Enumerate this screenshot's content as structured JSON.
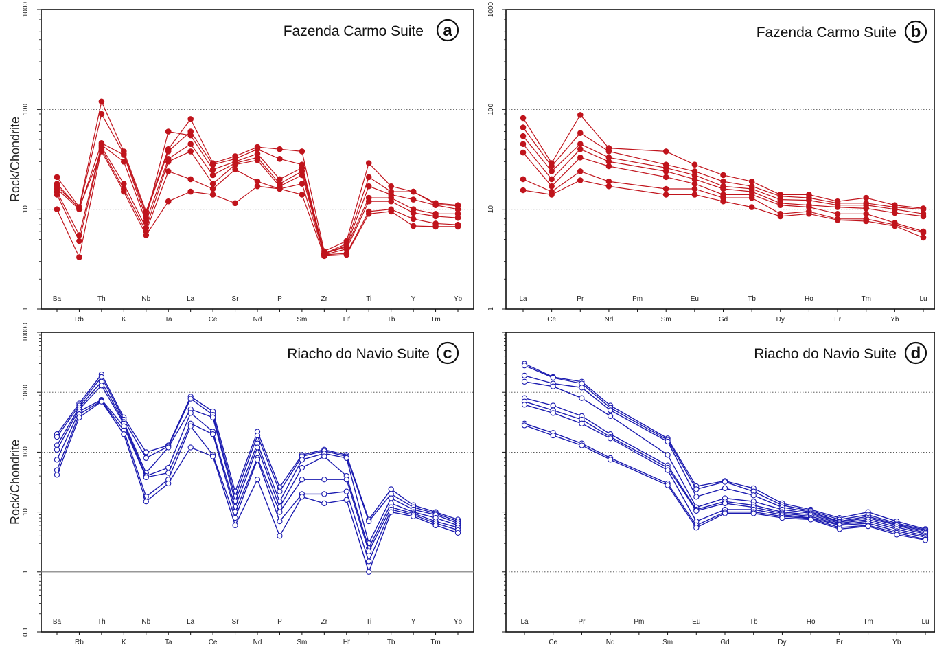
{
  "chart_data": [
    {
      "type": "line",
      "title": "Fazenda Carmo Suite",
      "panel_letter": "a",
      "ylabel": "Rock/Chondrite",
      "yscale": "log",
      "ylim": [
        1,
        1000
      ],
      "ytick_labels": [
        "1",
        "10",
        "100",
        "1000"
      ],
      "color": "#c0141c",
      "marker": "filled-circle",
      "categories": [
        "Ba",
        "Rb",
        "Th",
        "K",
        "Nb",
        "Ta",
        "La",
        "Ce",
        "Sr",
        "Nd",
        "P",
        "Sm",
        "Zr",
        "Hf",
        "Ti",
        "Tb",
        "Y",
        "Tm",
        "Yb"
      ],
      "series": [
        {
          "values": [
            21,
            10.5,
            120,
            38,
            9.5,
            40,
            80,
            29,
            34,
            42,
            40,
            38,
            3.8,
            4.8,
            29,
            17,
            15,
            11.5,
            11
          ]
        },
        {
          "values": [
            18,
            10.2,
            90,
            36,
            9,
            38,
            60,
            28,
            32,
            40,
            32,
            28,
            3.6,
            4.5,
            21,
            15,
            15,
            11.2,
            10.8
          ]
        },
        {
          "values": [
            16,
            10,
            46,
            35,
            8.2,
            60,
            55,
            25,
            30,
            36,
            20,
            26,
            3.6,
            4.3,
            17,
            14,
            12.5,
            11,
            10
          ]
        },
        {
          "values": [
            15,
            5.5,
            44,
            30,
            7.5,
            32,
            45,
            22,
            29,
            33,
            18,
            24,
            3.6,
            4.2,
            13,
            13,
            10,
            9,
            9
          ]
        },
        {
          "values": [
            14,
            4.8,
            42,
            18,
            6.5,
            30,
            38,
            18,
            28,
            31,
            17,
            22,
            3.5,
            4,
            12,
            12,
            9.2,
            8.5,
            8.2
          ]
        },
        {
          "values": [
            10,
            3.3,
            40,
            16,
            6,
            24,
            20,
            16,
            25,
            19,
            16,
            18,
            3.5,
            3.6,
            9.5,
            10,
            8,
            7.2,
            7
          ]
        },
        {
          "values": [
            17,
            10.3,
            38,
            15,
            5.5,
            12,
            15,
            14,
            11.5,
            17,
            16,
            14,
            3.4,
            3.5,
            9,
            9.5,
            6.8,
            6.7,
            6.7
          ]
        }
      ]
    },
    {
      "type": "line",
      "title": "Fazenda Carmo Suite",
      "panel_letter": "b",
      "yscale": "log",
      "ylim": [
        1,
        1000
      ],
      "ytick_labels": [
        "1",
        "10",
        "100",
        "1000"
      ],
      "color": "#c0141c",
      "marker": "filled-circle",
      "categories": [
        "La",
        "Ce",
        "Pr",
        "Nd",
        "Pm",
        "Sm",
        "Eu",
        "Gd",
        "Tb",
        "Dy",
        "Ho",
        "Er",
        "Tm",
        "Yb",
        "Lu"
      ],
      "missing": [
        "Pm"
      ],
      "series": [
        {
          "values": [
            82,
            29,
            88,
            41,
            null,
            38,
            28,
            22,
            19,
            14,
            14,
            12,
            13,
            11,
            10.2
          ]
        },
        {
          "values": [
            66,
            27,
            58,
            38,
            null,
            28,
            24,
            19,
            17,
            13.5,
            13,
            11.5,
            11.5,
            10.5,
            10
          ]
        },
        {
          "values": [
            54,
            24,
            45,
            33,
            null,
            26,
            22,
            17,
            16,
            12.5,
            12.3,
            11,
            11,
            10,
            9
          ]
        },
        {
          "values": [
            45,
            20,
            40,
            30,
            null,
            24,
            20,
            16,
            15,
            11.5,
            11,
            10.5,
            10.2,
            9.2,
            8.5
          ]
        },
        {
          "values": [
            37,
            17,
            33,
            27,
            null,
            21,
            18,
            14,
            14,
            11,
            10.5,
            9,
            9,
            7.3,
            6
          ]
        },
        {
          "values": [
            20,
            15,
            24,
            19,
            null,
            16,
            16,
            13,
            13,
            9,
            9.5,
            8,
            8,
            7,
            5.8
          ]
        },
        {
          "values": [
            15.5,
            14,
            19.5,
            17,
            null,
            14,
            14,
            12,
            10.5,
            8.5,
            9,
            7.8,
            7.6,
            6.8,
            5.2
          ]
        }
      ]
    },
    {
      "type": "line",
      "title": "Riacho do Navio Suite",
      "panel_letter": "c",
      "ylabel": "Rock/Chondrite",
      "yscale": "log",
      "ylim": [
        0.1,
        10000
      ],
      "ytick_labels": [
        "0.1",
        "1",
        "10",
        "100",
        "1000",
        "10000"
      ],
      "color": "#1c1cb0",
      "marker": "open-circle",
      "categories": [
        "Ba",
        "Rb",
        "Th",
        "K",
        "Nb",
        "Ta",
        "La",
        "Ce",
        "Sr",
        "Nd",
        "P",
        "Sm",
        "Zr",
        "Hf",
        "Ti",
        "Tb",
        "Y",
        "Tm",
        "Yb"
      ],
      "series": [
        {
          "values": [
            200,
            650,
            2000,
            380,
            100,
            130,
            850,
            480,
            22,
            220,
            26,
            90,
            110,
            90,
            7.5,
            24,
            13,
            10,
            7.5
          ]
        },
        {
          "values": [
            180,
            600,
            1800,
            350,
            80,
            125,
            780,
            420,
            18,
            190,
            22,
            85,
            105,
            85,
            7,
            20,
            12,
            9.5,
            7
          ]
        },
        {
          "values": [
            130,
            560,
            1500,
            320,
            45,
            120,
            520,
            380,
            15,
            140,
            15,
            75,
            95,
            80,
            3,
            17,
            11,
            9,
            6.5
          ]
        },
        {
          "values": [
            110,
            520,
            1300,
            300,
            40,
            55,
            450,
            220,
            12,
            120,
            12,
            55,
            85,
            40,
            2.5,
            14,
            10,
            8,
            6
          ]
        },
        {
          "values": [
            75,
            480,
            750,
            270,
            38,
            45,
            300,
            200,
            10,
            80,
            10,
            35,
            35,
            35,
            2.2,
            12,
            9.5,
            7,
            5.5
          ]
        },
        {
          "values": [
            50,
            430,
            720,
            230,
            18,
            35,
            270,
            90,
            8,
            75,
            7,
            20,
            20,
            22,
            1.5,
            11,
            9,
            6.5,
            5
          ]
        },
        {
          "values": [
            42,
            380,
            700,
            200,
            15,
            30,
            120,
            85,
            6,
            35,
            4,
            18,
            14,
            16,
            1,
            10,
            8.5,
            6,
            4.5
          ]
        }
      ]
    },
    {
      "type": "line",
      "title": "Riacho do Navio Suite",
      "panel_letter": "d",
      "yscale": "log",
      "ylim": [
        0.1,
        10000
      ],
      "color": "#1c1cb0",
      "marker": "open-circle",
      "categories": [
        "La",
        "Ce",
        "Pr",
        "Nd",
        "Pm",
        "Sm",
        "Eu",
        "Gd",
        "Tb",
        "Dy",
        "Ho",
        "Er",
        "Tm",
        "Yb",
        "Lu"
      ],
      "missing": [
        "Pm"
      ],
      "series": [
        {
          "values": [
            3000,
            1800,
            1500,
            600,
            null,
            170,
            27,
            33,
            25,
            14,
            11,
            8,
            10,
            7,
            5.2
          ]
        },
        {
          "values": [
            2800,
            1750,
            1400,
            550,
            null,
            160,
            24,
            32,
            22,
            13,
            10.5,
            7.5,
            9,
            6.5,
            5
          ]
        },
        {
          "values": [
            1900,
            1400,
            1200,
            500,
            null,
            150,
            18,
            25,
            19,
            12,
            10,
            7,
            8.5,
            6.2,
            4.8
          ]
        },
        {
          "values": [
            1500,
            1250,
            800,
            400,
            null,
            90,
            12,
            17,
            15,
            11,
            9.5,
            6.8,
            8,
            6,
            4.5
          ]
        },
        {
          "values": [
            800,
            600,
            400,
            200,
            null,
            60,
            11,
            15,
            13,
            10,
            9,
            6.5,
            7.5,
            5.6,
            4.3
          ]
        },
        {
          "values": [
            700,
            500,
            350,
            180,
            null,
            55,
            10.5,
            14,
            12,
            9.5,
            8.5,
            6.2,
            7,
            5.2,
            4
          ]
        },
        {
          "values": [
            620,
            450,
            300,
            170,
            null,
            50,
            7,
            11,
            11,
            9,
            8,
            6,
            6.5,
            4.8,
            3.8
          ]
        },
        {
          "values": [
            300,
            210,
            140,
            80,
            null,
            30,
            6,
            10,
            10,
            8.5,
            7.8,
            5.5,
            6,
            4.5,
            3.5
          ]
        },
        {
          "values": [
            280,
            190,
            130,
            75,
            null,
            28,
            5.5,
            9.5,
            9.5,
            8,
            7.5,
            5.2,
            5.8,
            4.2,
            3.4
          ]
        }
      ]
    }
  ]
}
